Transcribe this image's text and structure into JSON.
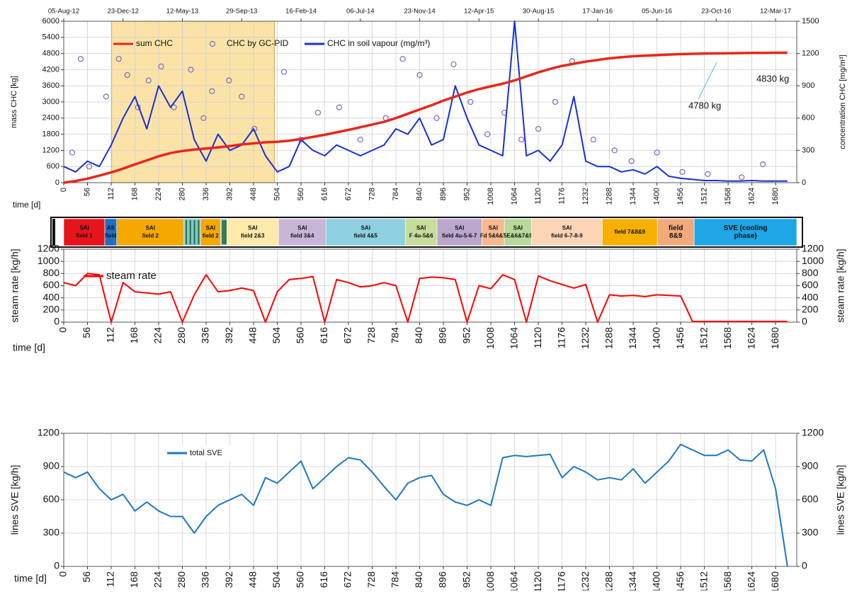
{
  "chart_data": [
    {
      "type": "line",
      "y_label": "mass CHC [kg]",
      "y2_label": "concentration CHC [mg/m³]",
      "x_label": "time [d]",
      "annotations": [
        "4830 kg",
        "4780 kg"
      ],
      "highlight_x": [
        113,
        497
      ],
      "xlim": [
        0,
        1730
      ],
      "xticks": [
        0,
        56,
        112,
        168,
        224,
        280,
        336,
        392,
        448,
        504,
        560,
        616,
        672,
        728,
        784,
        840,
        896,
        952,
        1008,
        1064,
        1120,
        1176,
        1232,
        1288,
        1344,
        1400,
        1456,
        1512,
        1568,
        1624,
        1680
      ],
      "x2ticks": [
        {
          "value": 0,
          "label": "05-Aug-12"
        },
        {
          "value": 140,
          "label": "23-Dec-12"
        },
        {
          "value": 280,
          "label": "12-May-13"
        },
        {
          "value": 420,
          "label": "29-Sep-13"
        },
        {
          "value": 560,
          "label": "16-Feb-14"
        },
        {
          "value": 700,
          "label": "06-Jul-14"
        },
        {
          "value": 840,
          "label": "23-Nov-14"
        },
        {
          "value": 980,
          "label": "12-Apr-15"
        },
        {
          "value": 1120,
          "label": "30-Aug-15"
        },
        {
          "value": 1260,
          "label": "17-Jan-16"
        },
        {
          "value": 1400,
          "label": "05-Jun-16"
        },
        {
          "value": 1540,
          "label": "23-Oct-16"
        },
        {
          "value": 1680,
          "label": "12-Mar-17"
        }
      ],
      "ylim": [
        0,
        6000
      ],
      "yticks": [
        0,
        600,
        1200,
        1800,
        2400,
        3000,
        3600,
        4200,
        4800,
        5400,
        6000
      ],
      "y2lim": [
        0,
        1500
      ],
      "y2ticks": [
        0,
        300,
        600,
        900,
        1200,
        1500
      ],
      "grid": true,
      "x": [
        0,
        28,
        56,
        84,
        112,
        140,
        168,
        196,
        224,
        252,
        280,
        308,
        336,
        364,
        392,
        420,
        448,
        476,
        504,
        532,
        560,
        588,
        616,
        644,
        672,
        700,
        728,
        756,
        784,
        812,
        840,
        868,
        896,
        924,
        952,
        980,
        1008,
        1036,
        1064,
        1092,
        1120,
        1148,
        1176,
        1204,
        1232,
        1260,
        1288,
        1316,
        1344,
        1372,
        1400,
        1428,
        1456,
        1484,
        1512,
        1540,
        1568,
        1596,
        1624,
        1652,
        1680,
        1708
      ],
      "series": [
        {
          "name": "sum CHC",
          "color": "#e8261c",
          "values": [
            0,
            60,
            150,
            260,
            380,
            520,
            680,
            830,
            980,
            1100,
            1180,
            1230,
            1270,
            1310,
            1360,
            1420,
            1460,
            1500,
            1520,
            1560,
            1620,
            1700,
            1780,
            1870,
            1960,
            2060,
            2160,
            2260,
            2400,
            2560,
            2720,
            2880,
            3050,
            3200,
            3350,
            3480,
            3580,
            3680,
            3800,
            3950,
            4100,
            4230,
            4340,
            4420,
            4500,
            4560,
            4620,
            4660,
            4700,
            4720,
            4740,
            4760,
            4780,
            4790,
            4800,
            4805,
            4810,
            4815,
            4820,
            4825,
            4830,
            4830
          ]
        },
        {
          "name": "CHC by GC-PID",
          "color": "#7b6bb5",
          "mode": "markers",
          "axis": "y2",
          "x": [
            20,
            40,
            60,
            100,
            130,
            150,
            175,
            200,
            230,
            260,
            300,
            330,
            350,
            390,
            420,
            450,
            520,
            560,
            600,
            650,
            700,
            760,
            800,
            840,
            880,
            920,
            960,
            1000,
            1040,
            1080,
            1120,
            1160,
            1200,
            1250,
            1300,
            1340,
            1400,
            1460,
            1520,
            1600,
            1650
          ],
          "values": [
            280,
            1150,
            150,
            800,
            1150,
            1000,
            700,
            950,
            1080,
            700,
            1050,
            600,
            850,
            950,
            800,
            500,
            1030,
            400,
            650,
            700,
            400,
            600,
            1150,
            1000,
            600,
            1100,
            750,
            450,
            650,
            400,
            500,
            750,
            1130,
            400,
            300,
            200,
            280,
            100,
            80,
            50,
            170
          ]
        },
        {
          "name": "CHC in soil vapour  (mg/m³)",
          "color": "#1a2fd6",
          "axis": "y2",
          "values": [
            150,
            100,
            200,
            150,
            350,
            600,
            800,
            500,
            900,
            700,
            850,
            400,
            200,
            450,
            300,
            350,
            500,
            250,
            100,
            150,
            400,
            300,
            250,
            350,
            300,
            250,
            300,
            350,
            500,
            450,
            600,
            350,
            400,
            900,
            600,
            350,
            300,
            250,
            1500,
            250,
            300,
            200,
            350,
            800,
            200,
            150,
            150,
            100,
            120,
            80,
            150,
            60,
            40,
            30,
            20,
            20,
            15,
            15,
            20,
            15,
            15,
            15
          ]
        }
      ]
    },
    {
      "type": "timeline",
      "xlim": [
        0,
        1730
      ],
      "phases": [
        {
          "label": [
            "SAI",
            "field 1"
          ],
          "color": "#e8141b",
          "start": 0,
          "end": 97
        },
        {
          "label": [
            "AS",
            "field"
          ],
          "color": "#1f6fc0",
          "start": 97,
          "end": 125
        },
        {
          "label": [
            "SAI",
            "field 2"
          ],
          "color": "#f5a800",
          "start": 125,
          "end": 284
        },
        {
          "label": null,
          "color": "#7fc8d8",
          "start": 284,
          "end": 323
        },
        {
          "label": [
            "SAI",
            "field 2"
          ],
          "color": "#f5a800",
          "start": 323,
          "end": 370
        },
        {
          "label": null,
          "color": "#9ccbe6",
          "start": 370,
          "end": 385
        },
        {
          "label": [
            "SAI",
            "field 2&3"
          ],
          "color": "#fde9a9",
          "start": 385,
          "end": 507
        },
        {
          "label": [
            "SAI",
            "field 3&4"
          ],
          "color": "#c8b6d8",
          "start": 507,
          "end": 619
        },
        {
          "label": [
            "SAI",
            "field 4&5"
          ],
          "color": "#8ecfe0",
          "start": 619,
          "end": 806
        },
        {
          "label": [
            "SAI",
            "F 4u-5&6"
          ],
          "color": "#c6dd9b",
          "start": 806,
          "end": 881
        },
        {
          "label": [
            "SAI",
            "field 4u-5-6-7"
          ],
          "color": "#b9a8cc",
          "start": 881,
          "end": 987
        },
        {
          "label": [
            "SAI",
            "Fd 5&6&7"
          ],
          "color": "#f7b98c",
          "start": 987,
          "end": 1040
        },
        {
          "label": [
            "SAI",
            "5E&6&7&9"
          ],
          "color": "#b8d99a",
          "start": 1040,
          "end": 1104
        },
        {
          "label": [
            "SAI",
            "field 6-7-8-9"
          ],
          "color": "#fbd5b5",
          "start": 1104,
          "end": 1271
        },
        {
          "label": [
            "field 7&8&9"
          ],
          "color": "#f7b000",
          "start": 1271,
          "end": 1401
        },
        {
          "label": [
            "field",
            "8&9"
          ],
          "color": "#f4a97a",
          "start": 1401,
          "end": 1488
        },
        {
          "label": [
            "SVE (cooling",
            "phase)"
          ],
          "color": "#1ea6e6",
          "start": 1488,
          "end": 1730
        }
      ]
    },
    {
      "type": "line",
      "y_label": "steam rate [kg/h]",
      "y2_label": "steam rate [kg/h]",
      "x_label": "time [d]",
      "xlim": [
        0,
        1730
      ],
      "xticks": [
        0,
        56,
        112,
        168,
        224,
        280,
        336,
        392,
        448,
        504,
        560,
        616,
        672,
        728,
        784,
        840,
        896,
        952,
        1008,
        1064,
        1120,
        1176,
        1232,
        1288,
        1344,
        1400,
        1456,
        1512,
        1568,
        1624,
        1680
      ],
      "ylim": [
        0,
        1200
      ],
      "yticks": [
        0,
        200,
        400,
        600,
        800,
        1000,
        1200
      ],
      "y2lim": [
        0,
        1200
      ],
      "y2ticks": [
        0,
        200,
        400,
        600,
        800,
        1000,
        1200
      ],
      "grid": true,
      "x": [
        0,
        28,
        56,
        84,
        112,
        140,
        168,
        196,
        224,
        252,
        280,
        308,
        336,
        364,
        392,
        420,
        448,
        476,
        504,
        532,
        560,
        588,
        616,
        644,
        672,
        700,
        728,
        756,
        784,
        812,
        840,
        868,
        896,
        924,
        952,
        980,
        1008,
        1036,
        1064,
        1092,
        1120,
        1148,
        1176,
        1204,
        1232,
        1260,
        1288,
        1316,
        1344,
        1372,
        1400,
        1428,
        1456,
        1484,
        1512,
        1540,
        1568,
        1596,
        1624,
        1652,
        1680,
        1708
      ],
      "series": [
        {
          "name": "steam rate",
          "color": "#ff0000",
          "values": [
            650,
            600,
            800,
            780,
            0,
            650,
            500,
            480,
            460,
            500,
            0,
            450,
            780,
            500,
            520,
            560,
            520,
            0,
            500,
            700,
            720,
            750,
            0,
            700,
            650,
            580,
            600,
            650,
            600,
            0,
            720,
            740,
            730,
            700,
            0,
            600,
            550,
            780,
            700,
            0,
            760,
            680,
            620,
            560,
            620,
            0,
            450,
            430,
            440,
            420,
            450,
            440,
            430,
            10,
            10,
            10,
            10,
            10,
            10,
            10,
            10,
            10
          ]
        }
      ]
    },
    {
      "type": "line",
      "y_label": "lines SVE [kg/h]",
      "y2_label": "lines SVE [kg/h]",
      "x_label": "time [d]",
      "xlim": [
        0,
        1730
      ],
      "xticks": [
        0,
        56,
        112,
        168,
        224,
        280,
        336,
        392,
        448,
        504,
        560,
        616,
        672,
        728,
        784,
        840,
        896,
        952,
        1008,
        1064,
        1120,
        1176,
        1232,
        1288,
        1344,
        1400,
        1456,
        1512,
        1568,
        1624,
        1680
      ],
      "ylim": [
        0,
        1200
      ],
      "yticks": [
        0,
        300,
        600,
        900,
        1200
      ],
      "y2lim": [
        0,
        1200
      ],
      "y2ticks": [
        0,
        300,
        600,
        900,
        1200
      ],
      "grid": true,
      "x": [
        0,
        28,
        56,
        84,
        112,
        140,
        168,
        196,
        224,
        252,
        280,
        308,
        336,
        364,
        392,
        420,
        448,
        476,
        504,
        532,
        560,
        588,
        616,
        644,
        672,
        700,
        728,
        756,
        784,
        812,
        840,
        868,
        896,
        924,
        952,
        980,
        1008,
        1036,
        1064,
        1092,
        1120,
        1148,
        1176,
        1204,
        1232,
        1260,
        1288,
        1316,
        1344,
        1372,
        1400,
        1428,
        1456,
        1484,
        1512,
        1540,
        1568,
        1596,
        1624,
        1652,
        1680,
        1708
      ],
      "series": [
        {
          "name": "total SVE",
          "color": "#1f77c0",
          "values": [
            850,
            800,
            850,
            700,
            600,
            650,
            500,
            580,
            500,
            450,
            450,
            300,
            450,
            550,
            600,
            650,
            550,
            800,
            750,
            850,
            950,
            700,
            800,
            900,
            980,
            960,
            850,
            720,
            600,
            750,
            800,
            820,
            650,
            580,
            550,
            600,
            550,
            980,
            1000,
            990,
            1000,
            1010,
            800,
            900,
            850,
            780,
            800,
            780,
            880,
            750,
            850,
            950,
            1100,
            1050,
            1000,
            1000,
            1050,
            960,
            950,
            1050,
            700,
            0
          ]
        }
      ]
    }
  ]
}
